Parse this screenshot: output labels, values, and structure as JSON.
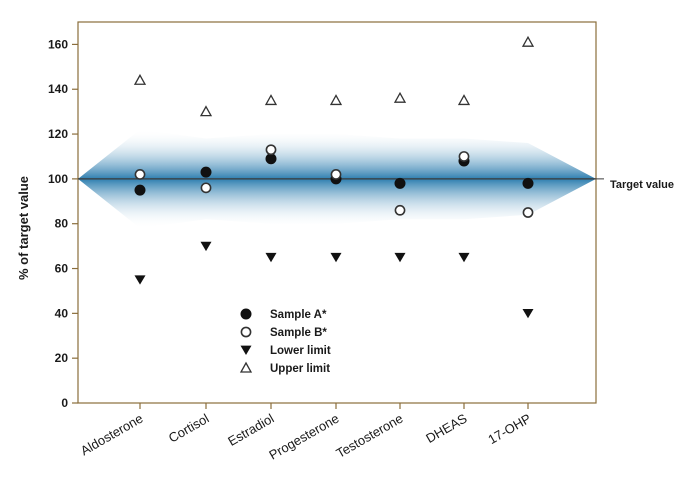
{
  "chart_data": {
    "type": "scatter",
    "title": "",
    "xlabel": "",
    "ylabel": "% of target value",
    "ylim": [
      0,
      170
    ],
    "yticks": [
      0,
      20,
      40,
      60,
      80,
      100,
      120,
      140,
      160
    ],
    "categories": [
      "Aldosterone",
      "Cortisol",
      "Estradiol",
      "Progesterone",
      "Testosterone",
      "DHEAS",
      "17-OHP"
    ],
    "series": [
      {
        "name": "Sample A*",
        "marker": "filled-circle",
        "values": [
          95,
          103,
          109,
          100,
          98,
          108,
          98
        ]
      },
      {
        "name": "Sample B*",
        "marker": "open-circle",
        "values": [
          102,
          96,
          113,
          102,
          86,
          110,
          85
        ]
      },
      {
        "name": "Lower limit",
        "marker": "filled-triangle-down",
        "values": [
          55,
          70,
          65,
          65,
          65,
          65,
          40
        ]
      },
      {
        "name": "Upper limit",
        "marker": "open-triangle-up",
        "values": [
          144,
          130,
          135,
          135,
          136,
          135,
          161
        ]
      }
    ],
    "reference_line": {
      "value": 100,
      "label": "Target value"
    },
    "band": {
      "upper": [
        122,
        118,
        120,
        120,
        118,
        118,
        116
      ],
      "lower": [
        78,
        82,
        80,
        80,
        82,
        82,
        84
      ]
    },
    "legend_position": "bottom-center",
    "grid": false,
    "colors": {
      "band": "#2f7fb0",
      "axis": "#8a6d3b",
      "marker": "#111111"
    }
  }
}
